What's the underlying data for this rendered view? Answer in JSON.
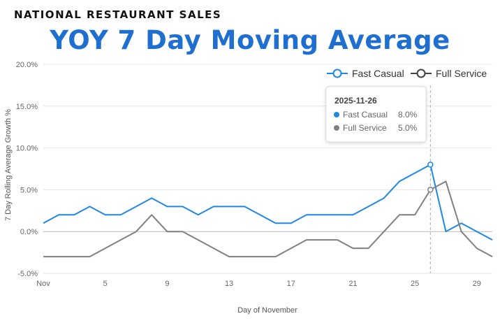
{
  "header": {
    "kicker": "NATIONAL RESTAURANT SALES",
    "title": "YOY 7 Day Moving Average"
  },
  "chart_data": {
    "type": "line",
    "title": "YOY 7 Day Moving Average",
    "xlabel": "Day of November",
    "ylabel": "7 Day Rolling Average Growth %",
    "x": [
      1,
      2,
      3,
      4,
      5,
      6,
      7,
      8,
      9,
      10,
      11,
      12,
      13,
      14,
      15,
      16,
      17,
      18,
      19,
      20,
      21,
      22,
      23,
      24,
      25,
      26,
      27,
      28,
      29,
      30
    ],
    "xlim": [
      1,
      30
    ],
    "ylim": [
      -5,
      20
    ],
    "x_ticks": [
      1,
      5,
      9,
      13,
      17,
      21,
      25,
      29
    ],
    "x_tick_labels": [
      "Nov",
      "5",
      "9",
      "13",
      "17",
      "21",
      "25",
      "29"
    ],
    "y_ticks": [
      -5,
      0,
      5,
      10,
      15,
      20
    ],
    "y_tick_labels": [
      "-5.0%",
      "0.0%",
      "5.0%",
      "10.0%",
      "15.0%",
      "20.0%"
    ],
    "grid": true,
    "legend_position": "top-right",
    "series": [
      {
        "name": "Fast Casual",
        "color": "#1e88e5",
        "values": [
          1,
          2,
          2,
          3,
          2,
          2,
          3,
          4,
          3,
          3,
          2,
          3,
          3,
          3,
          2,
          1,
          1,
          2,
          2,
          2,
          2,
          3,
          4,
          6,
          7,
          8,
          0,
          1,
          0,
          -1
        ]
      },
      {
        "name": "Full Service",
        "color": "#808080",
        "values": [
          -3,
          -3,
          -3,
          -3,
          -2,
          -1,
          0,
          2,
          0,
          0,
          -1,
          -2,
          -3,
          -3,
          -3,
          -3,
          -2,
          -1,
          -1,
          -1,
          -2,
          -2,
          0,
          2,
          2,
          5,
          6,
          0,
          -2,
          -3
        ]
      }
    ],
    "tooltip": {
      "x": 26,
      "title": "2025-11-26",
      "rows": [
        {
          "name": "Fast Casual",
          "value": "8.0%"
        },
        {
          "name": "Full Service",
          "value": "5.0%"
        }
      ]
    }
  }
}
